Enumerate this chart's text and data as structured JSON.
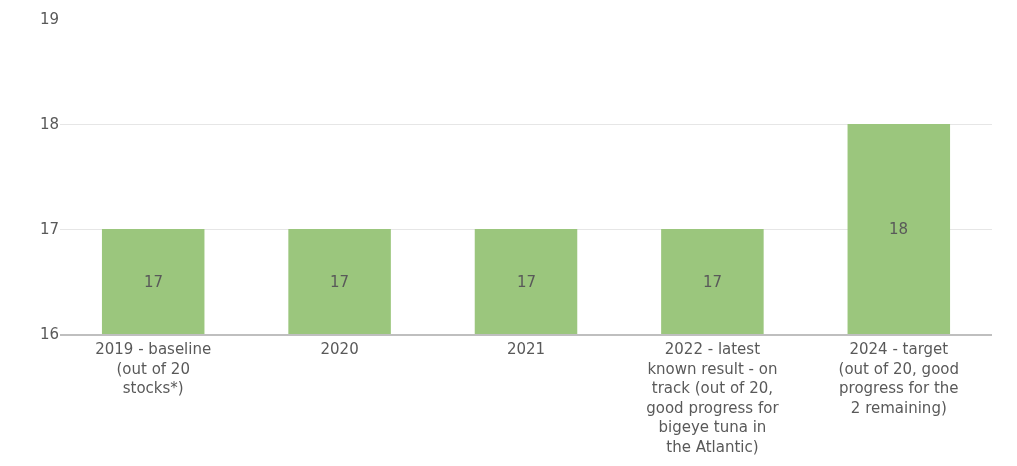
{
  "chart_data": {
    "type": "bar",
    "categories": [
      "2019 - baseline (out of 20 stocks*)",
      "2020",
      "2021",
      "2022 - latest known result - on track (out of 20, good progress for bigeye tuna in the Atlantic)",
      "2024 - target (out of 20, good progress for the 2 remaining)"
    ],
    "values": [
      17,
      17,
      17,
      17,
      18
    ],
    "color": "#9bc67d",
    "ylim": [
      16,
      19
    ],
    "yticks": [
      16,
      17,
      18,
      19
    ],
    "grid": "y",
    "data_labels": true
  }
}
